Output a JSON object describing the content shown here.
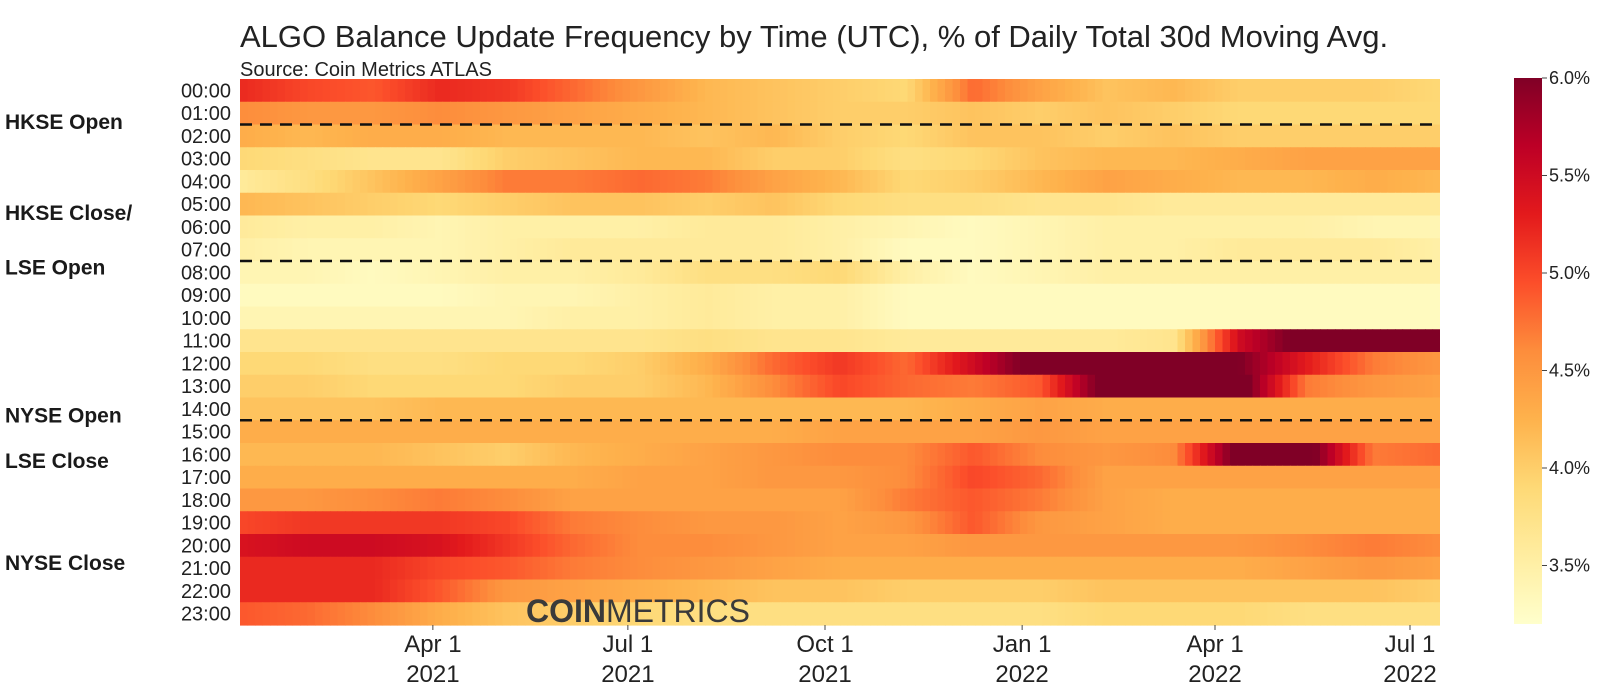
{
  "chart_data": {
    "type": "heatmap",
    "title": "ALGO Balance Update Frequency by Time (UTC), % of Daily Total 30d Moving Avg.",
    "subtitle": "Source: Coin Metrics ATLAS",
    "watermark": {
      "bold": "COIN",
      "light": "METRICS"
    },
    "y_categories": [
      "00:00",
      "01:00",
      "02:00",
      "03:00",
      "04:00",
      "05:00",
      "06:00",
      "07:00",
      "08:00",
      "09:00",
      "10:00",
      "11:00",
      "12:00",
      "13:00",
      "14:00",
      "15:00",
      "16:00",
      "17:00",
      "18:00",
      "19:00",
      "20:00",
      "21:00",
      "22:00",
      "23:00"
    ],
    "x_range": [
      "2021-01-01",
      "2022-07-15"
    ],
    "x_ticks": [
      {
        "date": "2021-04-01",
        "label": [
          "Apr 1",
          "2021"
        ]
      },
      {
        "date": "2021-07-01",
        "label": [
          "Jul 1",
          "2021"
        ]
      },
      {
        "date": "2021-10-01",
        "label": [
          "Oct 1",
          "2021"
        ]
      },
      {
        "date": "2022-01-01",
        "label": [
          "Jan 1",
          "2022"
        ]
      },
      {
        "date": "2022-04-01",
        "label": [
          "Apr 1",
          "2022"
        ]
      },
      {
        "date": "2022-07-01",
        "label": [
          "Jul 1",
          "2022"
        ]
      }
    ],
    "periods": [
      "2021-01",
      "2021-02",
      "2021-03",
      "2021-04",
      "2021-05",
      "2021-06",
      "2021-07",
      "2021-08",
      "2021-09",
      "2021-10",
      "2021-11",
      "2021-12",
      "2022-01",
      "2022-02",
      "2022-03",
      "2022-04",
      "2022-05",
      "2022-06",
      "2022-07"
    ],
    "values": [
      [
        5.2,
        5.0,
        4.9,
        5.2,
        5.1,
        4.8,
        4.5,
        4.2,
        4.1,
        4.0,
        3.9,
        4.8,
        4.4,
        4.1,
        4.2,
        4.0,
        4.0,
        4.0,
        3.9
      ],
      [
        4.6,
        4.5,
        4.5,
        4.6,
        4.5,
        4.4,
        4.3,
        4.2,
        4.1,
        4.0,
        4.0,
        4.1,
        4.0,
        4.1,
        4.0,
        3.9,
        3.9,
        3.9,
        3.9
      ],
      [
        4.3,
        4.2,
        4.3,
        4.3,
        4.2,
        4.2,
        4.2,
        4.1,
        4.2,
        4.0,
        3.9,
        4.1,
        4.1,
        4.0,
        4.1,
        4.0,
        4.0,
        4.0,
        4.0
      ],
      [
        3.9,
        3.8,
        3.7,
        3.7,
        4.0,
        4.1,
        4.2,
        4.2,
        4.0,
        4.0,
        3.8,
        3.9,
        4.1,
        4.2,
        4.2,
        4.3,
        4.4,
        4.4,
        4.4
      ],
      [
        3.6,
        3.8,
        4.1,
        4.4,
        4.7,
        4.7,
        4.8,
        4.7,
        4.4,
        4.2,
        3.9,
        4.0,
        4.2,
        4.4,
        4.3,
        4.2,
        4.2,
        4.3,
        4.2
      ],
      [
        4.2,
        4.1,
        4.0,
        3.9,
        4.0,
        4.1,
        4.1,
        4.0,
        4.1,
        3.9,
        3.8,
        3.8,
        3.7,
        3.7,
        3.6,
        3.6,
        3.6,
        3.6,
        3.6
      ],
      [
        3.6,
        3.5,
        3.5,
        3.4,
        3.5,
        3.5,
        3.5,
        3.6,
        3.6,
        3.5,
        3.4,
        3.3,
        3.4,
        3.5,
        3.5,
        3.5,
        3.5,
        3.4,
        3.4
      ],
      [
        3.5,
        3.4,
        3.4,
        3.4,
        3.5,
        3.6,
        3.6,
        3.6,
        3.6,
        3.5,
        3.3,
        3.3,
        3.4,
        3.5,
        3.5,
        3.6,
        3.6,
        3.6,
        3.5
      ],
      [
        3.4,
        3.4,
        3.3,
        3.4,
        3.5,
        3.5,
        3.6,
        3.8,
        3.8,
        3.9,
        3.5,
        3.3,
        3.4,
        3.5,
        3.5,
        3.5,
        3.5,
        3.5,
        3.5
      ],
      [
        3.3,
        3.3,
        3.3,
        3.3,
        3.4,
        3.4,
        3.5,
        3.6,
        3.5,
        3.5,
        3.3,
        3.3,
        3.3,
        3.3,
        3.3,
        3.3,
        3.3,
        3.3,
        3.3
      ],
      [
        3.4,
        3.4,
        3.4,
        3.4,
        3.4,
        3.5,
        3.5,
        3.6,
        3.5,
        3.5,
        3.3,
        3.3,
        3.3,
        3.3,
        3.3,
        3.3,
        3.3,
        3.3,
        3.3
      ],
      [
        3.7,
        3.7,
        3.7,
        3.7,
        3.7,
        3.7,
        3.7,
        3.8,
        3.7,
        3.7,
        3.6,
        3.6,
        3.6,
        3.6,
        3.7,
        5.5,
        6.2,
        6.2,
        6.2
      ],
      [
        3.9,
        3.9,
        3.8,
        3.8,
        3.9,
        3.9,
        4.0,
        4.3,
        4.8,
        5.1,
        4.8,
        5.5,
        6.2,
        6.2,
        6.2,
        6.0,
        5.3,
        4.7,
        4.5
      ],
      [
        4.0,
        4.0,
        3.9,
        3.9,
        3.9,
        4.0,
        4.0,
        4.2,
        4.6,
        5.0,
        4.8,
        4.7,
        4.9,
        6.2,
        6.2,
        6.2,
        4.7,
        4.5,
        4.4
      ],
      [
        4.1,
        4.1,
        4.1,
        4.2,
        4.2,
        4.2,
        4.2,
        4.2,
        4.2,
        4.2,
        4.2,
        4.3,
        4.4,
        4.3,
        4.3,
        4.3,
        4.3,
        4.3,
        4.3
      ],
      [
        4.3,
        4.3,
        4.3,
        4.3,
        4.3,
        4.3,
        4.3,
        4.3,
        4.3,
        4.4,
        4.4,
        4.4,
        4.5,
        4.4,
        4.4,
        4.4,
        4.4,
        4.4,
        4.4
      ],
      [
        4.2,
        4.2,
        4.2,
        4.1,
        4.0,
        4.2,
        4.3,
        4.4,
        4.5,
        4.6,
        4.6,
        4.9,
        4.6,
        4.5,
        4.6,
        6.2,
        6.2,
        4.7,
        4.8
      ],
      [
        4.3,
        4.3,
        4.3,
        4.3,
        4.3,
        4.3,
        4.4,
        4.4,
        4.5,
        4.5,
        4.6,
        5.0,
        4.8,
        4.4,
        4.4,
        4.4,
        4.4,
        4.4,
        4.4
      ],
      [
        4.5,
        4.5,
        4.6,
        4.7,
        4.6,
        4.4,
        4.4,
        4.4,
        4.4,
        4.4,
        4.7,
        4.9,
        4.7,
        4.4,
        4.3,
        4.3,
        4.3,
        4.3,
        4.3
      ],
      [
        5.0,
        5.1,
        5.1,
        5.1,
        5.0,
        4.7,
        4.6,
        4.5,
        4.5,
        4.4,
        4.5,
        4.9,
        4.5,
        4.4,
        4.3,
        4.3,
        4.3,
        4.3,
        4.3
      ],
      [
        5.4,
        5.5,
        5.5,
        5.4,
        5.1,
        4.8,
        4.6,
        4.6,
        4.5,
        4.4,
        4.4,
        4.5,
        4.5,
        4.5,
        4.5,
        4.5,
        4.6,
        4.7,
        4.6
      ],
      [
        5.2,
        5.2,
        5.2,
        5.0,
        4.9,
        4.7,
        4.6,
        4.5,
        4.4,
        4.3,
        4.3,
        4.3,
        4.3,
        4.3,
        4.3,
        4.3,
        4.4,
        4.5,
        4.4
      ],
      [
        5.2,
        5.2,
        5.2,
        4.9,
        4.5,
        4.4,
        4.3,
        4.2,
        4.1,
        4.1,
        4.0,
        4.0,
        4.0,
        4.1,
        4.1,
        4.1,
        4.1,
        4.1,
        4.0
      ],
      [
        4.9,
        4.8,
        4.6,
        4.3,
        4.1,
        4.0,
        3.9,
        3.8,
        3.8,
        3.8,
        3.8,
        3.8,
        3.8,
        3.9,
        3.9,
        3.9,
        3.8,
        3.8,
        3.8
      ]
    ],
    "colorbar": {
      "min": 3.2,
      "max": 6.0,
      "unit": "%",
      "ticks": [
        "3.5%",
        "4.0%",
        "4.5%",
        "5.0%",
        "5.5%",
        "6.0%"
      ],
      "tick_values": [
        3.5,
        4.0,
        4.5,
        5.0,
        5.5,
        6.0
      ],
      "scale": "YlOrRd"
    },
    "annotations": [
      {
        "label": "HKSE Open",
        "line_after": "01:00"
      },
      {
        "label": "HKSE Close/\nLSE Open",
        "line_after": "07:00"
      },
      {
        "label": "NYSE Open",
        "line_after": "14:00"
      },
      {
        "label": "LSE Close",
        "line_after": null
      },
      {
        "label": "NYSE Close",
        "line_after": null
      }
    ]
  }
}
